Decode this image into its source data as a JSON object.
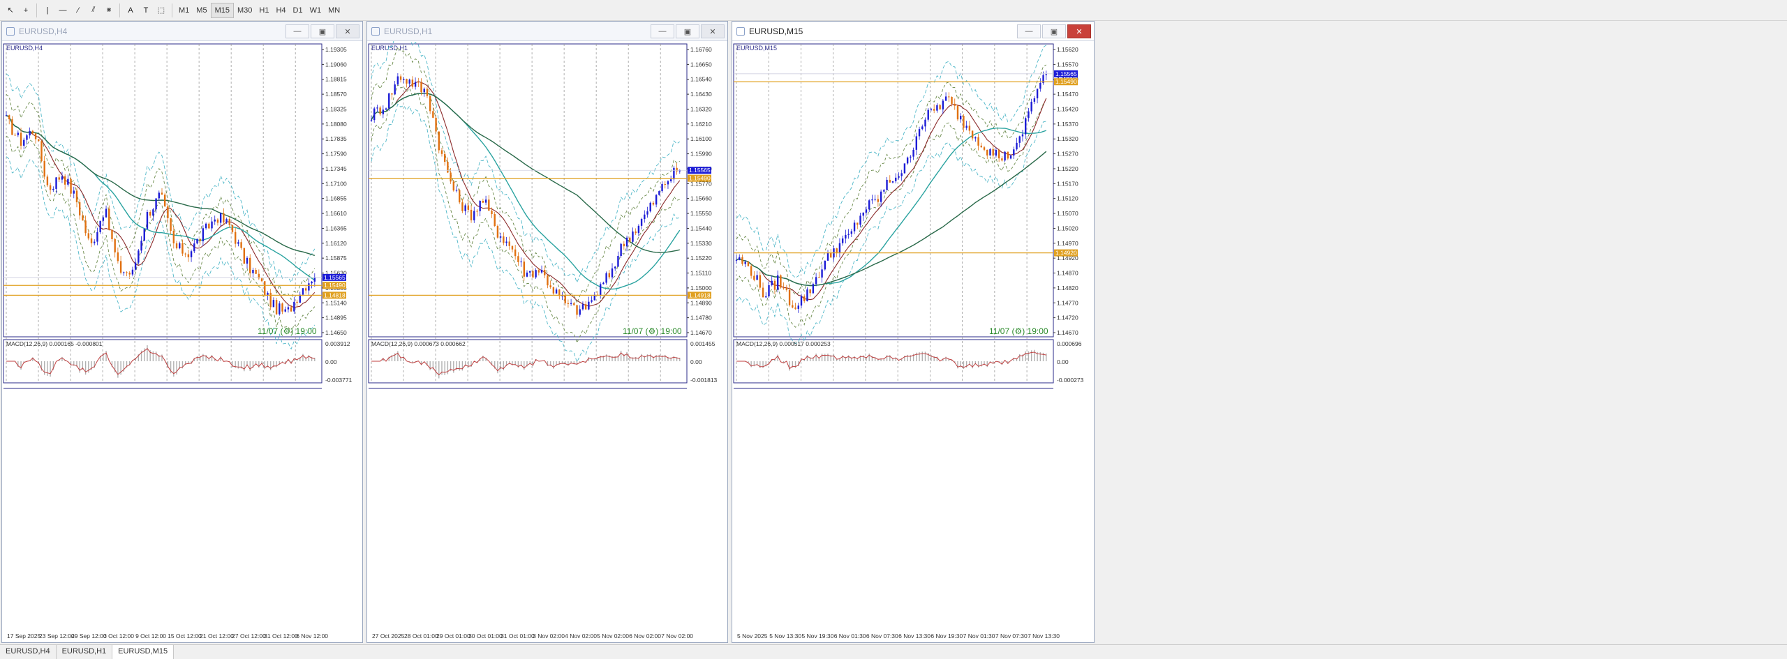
{
  "toolbar": {
    "tools": [
      "cursor",
      "crosshair",
      "vline",
      "hline",
      "trendline",
      "channel",
      "pitchfork",
      "text",
      "label",
      "shapes"
    ],
    "tool_glyphs": [
      "↖",
      "+",
      "|",
      "—",
      "∕",
      "⫽",
      "⨳",
      "A",
      "T",
      "⬚"
    ],
    "timeframes": [
      "M1",
      "M5",
      "M15",
      "M30",
      "H1",
      "H4",
      "D1",
      "W1",
      "MN"
    ],
    "active_timeframe": "M15"
  },
  "windows": [
    {
      "title": "EURUSD,H4",
      "label": "EURUSD,H4",
      "active": false,
      "prices": [
        "1.19305",
        "1.19060",
        "1.18815",
        "1.18570",
        "1.18325",
        "1.18080",
        "1.17835",
        "1.17590",
        "1.17345",
        "1.17100",
        "1.16855",
        "1.16610",
        "1.16365",
        "1.16120",
        "1.15875",
        "1.15630",
        "1.15385",
        "1.15140",
        "1.14895",
        "1.14650"
      ],
      "bid_tag": "1.15565",
      "line_tag": "1.15490",
      "line_tag2": "1.14818",
      "timer": "11/07 (⚙) 19:00",
      "macd_label": "MACD(12,26,9) 0.000165 -0.000801",
      "macd_scale": [
        "0.003912",
        "0.00",
        "-0.003771"
      ],
      "dates": [
        "17 Sep 2025",
        "23 Sep 12:00",
        "29 Sep 12:00",
        "3 Oct 12:00",
        "9 Oct 12:00",
        "15 Oct 12:00",
        "21 Oct 12:00",
        "27 Oct 12:00",
        "31 Oct 12:00",
        "6 Nov 12:00"
      ],
      "colors": {
        "up": "#1c1cd6",
        "down": "#e07010",
        "level": "#e0a020"
      }
    },
    {
      "title": "EURUSD,H1",
      "label": "EURUSD,H1",
      "active": false,
      "prices": [
        "1.16760",
        "1.16650",
        "1.16540",
        "1.16430",
        "1.16320",
        "1.16210",
        "1.16100",
        "1.15990",
        "1.15880",
        "1.15770",
        "1.15660",
        "1.15550",
        "1.15440",
        "1.15330",
        "1.15220",
        "1.15110",
        "1.15000",
        "1.14890",
        "1.14780",
        "1.14670"
      ],
      "bid_tag": "1.15565",
      "line_tag": "1.15490",
      "line_tag2": "1.14918",
      "timer": "11/07 (⚙) 19:00",
      "macd_label": "MACD(12,26,9) 0.000673 0.000662",
      "macd_scale": [
        "0.001455",
        "0.00",
        "-0.001813"
      ],
      "dates": [
        "27 Oct 2025",
        "28 Oct 01:00",
        "29 Oct 01:00",
        "30 Oct 01:00",
        "31 Oct 01:00",
        "3 Nov 02:00",
        "4 Nov 02:00",
        "5 Nov 02:00",
        "6 Nov 02:00",
        "7 Nov 02:00"
      ]
    },
    {
      "title": "EURUSD,M15",
      "label": "EURUSD,M15",
      "active": true,
      "prices": [
        "1.15620",
        "1.15570",
        "1.15520",
        "1.15470",
        "1.15420",
        "1.15370",
        "1.15320",
        "1.15270",
        "1.15220",
        "1.15170",
        "1.15120",
        "1.15070",
        "1.15020",
        "1.14970",
        "1.14920",
        "1.14870",
        "1.14820",
        "1.14770",
        "1.14720",
        "1.14670"
      ],
      "bid_tag": "1.15565",
      "line_tag": "1.15490",
      "line_tag2": "1.14920",
      "timer": "11/07 (⚙) 19:00",
      "macd_label": "MACD(12,26,9) 0.000517 0.000253",
      "macd_scale": [
        "0.000696",
        "0.00",
        "-0.000273"
      ],
      "dates": [
        "5 Nov 2025",
        "5 Nov 13:30",
        "5 Nov 19:30",
        "6 Nov 01:30",
        "6 Nov 07:30",
        "6 Nov 13:30",
        "6 Nov 19:30",
        "7 Nov 01:30",
        "7 Nov 07:30",
        "7 Nov 13:30"
      ]
    }
  ],
  "tabs": [
    {
      "label": "EURUSD,H4",
      "active": false
    },
    {
      "label": "EURUSD,H1",
      "active": false
    },
    {
      "label": "EURUSD,M15",
      "active": true
    }
  ]
}
